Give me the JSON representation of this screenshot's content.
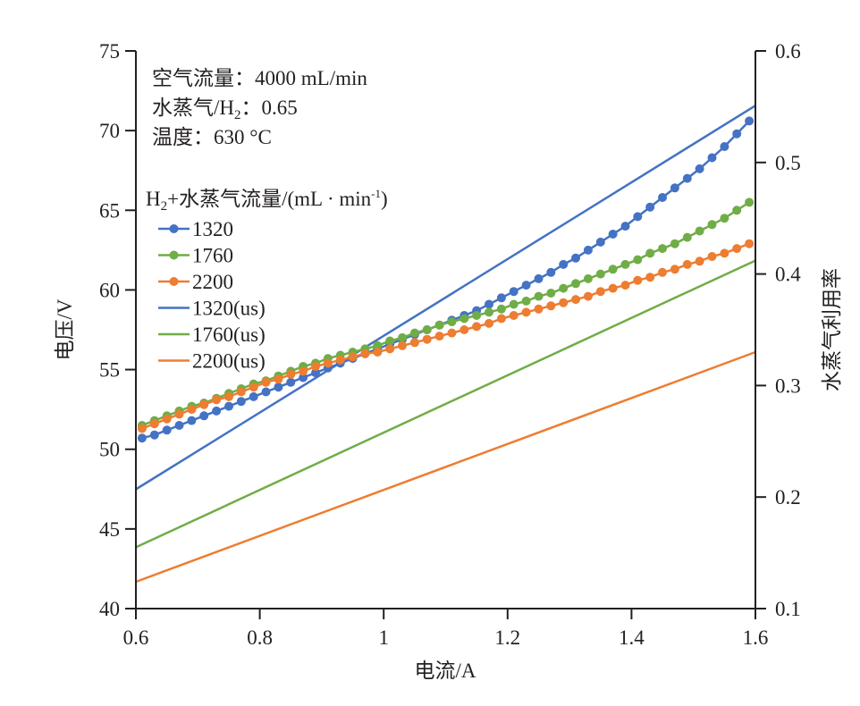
{
  "chart_data": {
    "type": "line",
    "title": "",
    "xlabel": "电流/A",
    "ylabel": "电压/V",
    "y2label": "水蒸气利用率",
    "xlim": [
      0.6,
      1.6
    ],
    "ylim": [
      40,
      75
    ],
    "y2lim": [
      0.1,
      0.6
    ],
    "xticks": [
      "0.6",
      "0.8",
      "1",
      "1.2",
      "1.4",
      "1.6"
    ],
    "xtick_values": [
      0.6,
      0.8,
      1.0,
      1.2,
      1.4,
      1.6
    ],
    "yticks": [
      "40",
      "45",
      "50",
      "55",
      "60",
      "65",
      "70",
      "75"
    ],
    "ytick_values": [
      40,
      45,
      50,
      55,
      60,
      65,
      70,
      75
    ],
    "y2ticks": [
      "0.1",
      "0.2",
      "0.3",
      "0.4",
      "0.5",
      "0.6"
    ],
    "y2tick_values": [
      0.1,
      0.2,
      0.3,
      0.4,
      0.5,
      0.6
    ],
    "grid": false,
    "annotations": [
      {
        "lines": [
          "空气流量：4000 mL/min",
          "水蒸气/H",
          "2",
          "：0.65",
          "温度：630 °C"
        ]
      }
    ],
    "conditions": {
      "air_flow": "空气流量：4000 mL/min",
      "steam_ratio_prefix": "水蒸气/H",
      "steam_ratio_sub": "2",
      "steam_ratio_suffix": "：0.65",
      "temperature": "温度：630 °C"
    },
    "legend": {
      "title_prefix": "H",
      "title_sub": "2",
      "title_mid": "+水蒸气流量/(mL · min",
      "title_sup": "-1",
      "title_suffix": ")",
      "placement": "top-left"
    },
    "series": [
      {
        "name": "1320",
        "axis": "left",
        "style": "line-marker",
        "color": "#4472c4",
        "x": [
          0.61,
          0.63,
          0.65,
          0.67,
          0.69,
          0.71,
          0.73,
          0.75,
          0.77,
          0.79,
          0.81,
          0.83,
          0.85,
          0.87,
          0.89,
          0.91,
          0.93,
          0.95,
          0.97,
          0.99,
          1.01,
          1.03,
          1.05,
          1.07,
          1.09,
          1.11,
          1.13,
          1.15,
          1.17,
          1.19,
          1.21,
          1.23,
          1.25,
          1.27,
          1.29,
          1.31,
          1.33,
          1.35,
          1.37,
          1.39,
          1.41,
          1.43,
          1.45,
          1.47,
          1.49,
          1.51,
          1.53,
          1.55,
          1.57,
          1.59
        ],
        "y": [
          50.7,
          50.9,
          51.2,
          51.5,
          51.8,
          52.1,
          52.4,
          52.7,
          53.0,
          53.3,
          53.6,
          53.9,
          54.2,
          54.5,
          54.8,
          55.1,
          55.4,
          55.7,
          56.0,
          56.3,
          56.6,
          56.9,
          57.2,
          57.5,
          57.8,
          58.1,
          58.4,
          58.7,
          59.1,
          59.5,
          59.9,
          60.3,
          60.7,
          61.1,
          61.6,
          62.0,
          62.5,
          63.0,
          63.5,
          64.0,
          64.6,
          65.2,
          65.8,
          66.4,
          67.0,
          67.6,
          68.3,
          69.0,
          69.8,
          70.6
        ]
      },
      {
        "name": "1760",
        "axis": "left",
        "style": "line-marker",
        "color": "#70ad47",
        "x": [
          0.61,
          0.63,
          0.65,
          0.67,
          0.69,
          0.71,
          0.73,
          0.75,
          0.77,
          0.79,
          0.81,
          0.83,
          0.85,
          0.87,
          0.89,
          0.91,
          0.93,
          0.95,
          0.97,
          0.99,
          1.01,
          1.03,
          1.05,
          1.07,
          1.09,
          1.11,
          1.13,
          1.15,
          1.17,
          1.19,
          1.21,
          1.23,
          1.25,
          1.27,
          1.29,
          1.31,
          1.33,
          1.35,
          1.37,
          1.39,
          1.41,
          1.43,
          1.45,
          1.47,
          1.49,
          1.51,
          1.53,
          1.55,
          1.57,
          1.59
        ],
        "y": [
          51.5,
          51.8,
          52.1,
          52.4,
          52.7,
          52.9,
          53.2,
          53.5,
          53.8,
          54.1,
          54.3,
          54.6,
          54.9,
          55.2,
          55.4,
          55.7,
          55.9,
          56.1,
          56.3,
          56.5,
          56.8,
          57.0,
          57.3,
          57.5,
          57.8,
          58.0,
          58.2,
          58.4,
          58.6,
          58.8,
          59.1,
          59.3,
          59.6,
          59.8,
          60.1,
          60.4,
          60.7,
          61.0,
          61.3,
          61.6,
          61.9,
          62.3,
          62.6,
          62.9,
          63.3,
          63.7,
          64.1,
          64.5,
          65.0,
          65.5
        ]
      },
      {
        "name": "2200",
        "axis": "left",
        "style": "line-marker",
        "color": "#ed7d31",
        "x": [
          0.61,
          0.63,
          0.65,
          0.67,
          0.69,
          0.71,
          0.73,
          0.75,
          0.77,
          0.79,
          0.81,
          0.83,
          0.85,
          0.87,
          0.89,
          0.91,
          0.93,
          0.95,
          0.97,
          0.99,
          1.01,
          1.03,
          1.05,
          1.07,
          1.09,
          1.11,
          1.13,
          1.15,
          1.17,
          1.19,
          1.21,
          1.23,
          1.25,
          1.27,
          1.29,
          1.31,
          1.33,
          1.35,
          1.37,
          1.39,
          1.41,
          1.43,
          1.45,
          1.47,
          1.49,
          1.51,
          1.53,
          1.55,
          1.57,
          1.59
        ],
        "y": [
          51.3,
          51.6,
          51.9,
          52.2,
          52.5,
          52.8,
          53.1,
          53.3,
          53.6,
          53.9,
          54.2,
          54.4,
          54.7,
          54.9,
          55.2,
          55.4,
          55.6,
          55.8,
          56.0,
          56.1,
          56.3,
          56.5,
          56.7,
          56.9,
          57.1,
          57.3,
          57.5,
          57.7,
          57.9,
          58.2,
          58.4,
          58.6,
          58.8,
          59.0,
          59.2,
          59.4,
          59.6,
          59.9,
          60.1,
          60.3,
          60.6,
          60.8,
          61.1,
          61.3,
          61.6,
          61.8,
          62.1,
          62.3,
          62.6,
          62.9
        ]
      },
      {
        "name": "1320(us)",
        "axis": "right",
        "style": "line",
        "color": "#4472c4",
        "x": [
          0.6,
          1.6
        ],
        "y": [
          0.207,
          0.551
        ]
      },
      {
        "name": "1760(us)",
        "axis": "right",
        "style": "line",
        "color": "#70ad47",
        "x": [
          0.6,
          1.6
        ],
        "y": [
          0.155,
          0.412
        ]
      },
      {
        "name": "2200(us)",
        "axis": "right",
        "style": "line",
        "color": "#ed7d31",
        "x": [
          0.6,
          1.6
        ],
        "y": [
          0.124,
          0.33
        ]
      }
    ]
  }
}
